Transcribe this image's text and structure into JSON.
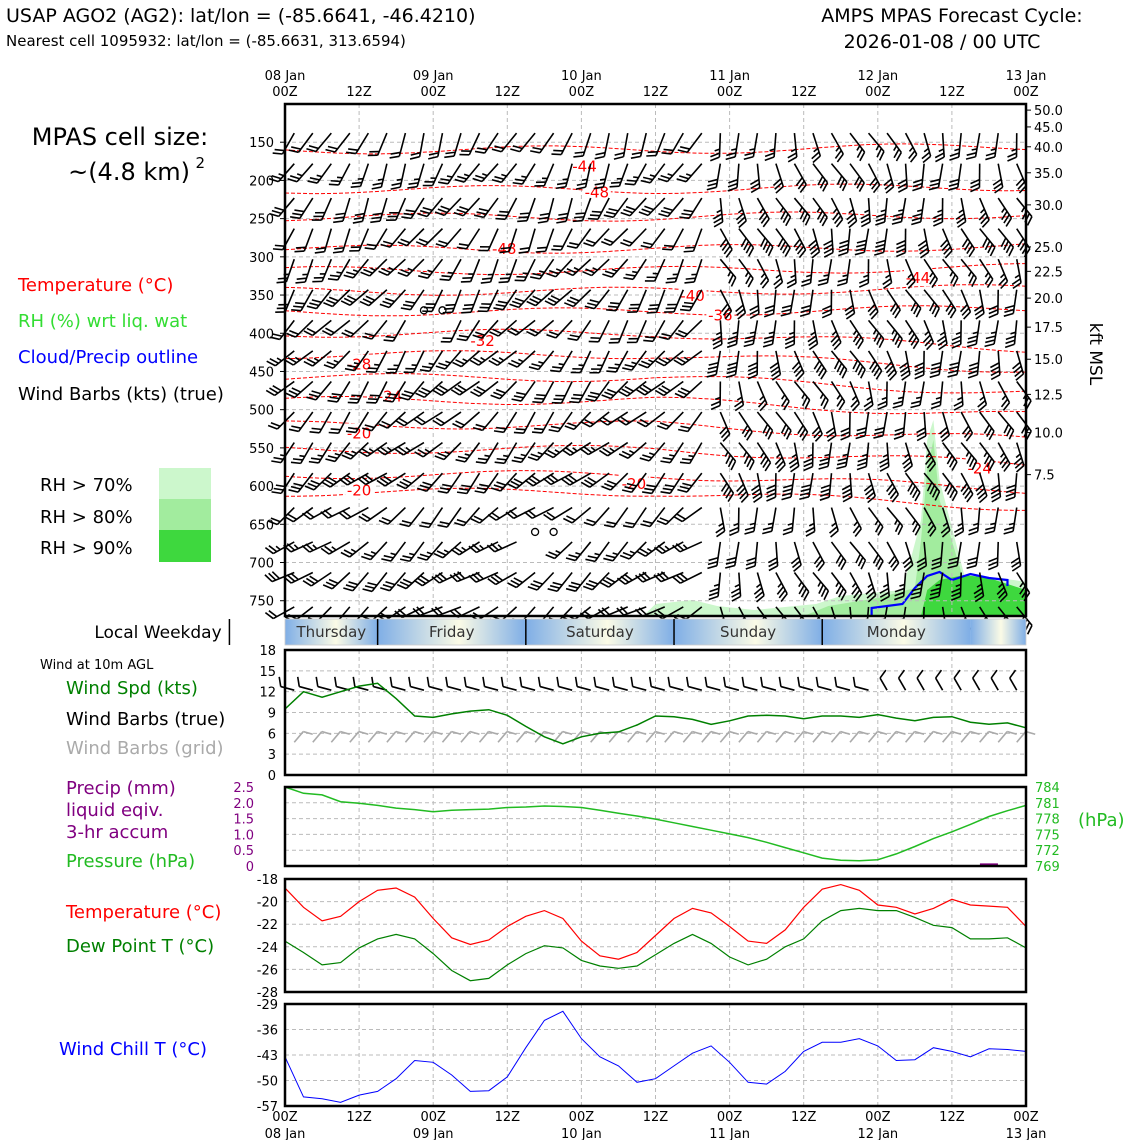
{
  "header": {
    "station": "USAP AGO2 (AG2): lat/lon = (-85.6641, -46.4210)",
    "nearest": "Nearest cell 1095932: lat/lon = (-85.6631, 313.6594)",
    "cycle_label": "AMPS MPAS Forecast Cycle:",
    "cycle_value": "2026-01-08 / 00 UTC"
  },
  "cell_size": {
    "label": "MPAS cell size:",
    "value": "~(4.8 km)",
    "exponent": "2"
  },
  "legend": {
    "temperature": "Temperature (°C)",
    "rh": "RH (%) wrt liq. wat",
    "cloud": "Cloud/Precip outline",
    "barbs": "Wind Barbs (kts) (true)",
    "rh70": "RH > 70%",
    "rh80": "RH > 80%",
    "rh90": "RH > 90%"
  },
  "colors": {
    "temperature": "#ff0000",
    "rh_label": "#33dd33",
    "cloud": "#0000ff",
    "rh70": "#ccf7cc",
    "rh80": "#a2ec9e",
    "rh90": "#3ed83e",
    "wind_speed": "#008000",
    "barb_grid": "#aaaaaa",
    "precip": "#800080",
    "pressure": "#22bb22",
    "dewpoint": "#008000",
    "windchill": "#0000ff",
    "weekday_blue": "#7faee6",
    "weekday_pale": "#fbfbe6"
  },
  "time_axis": {
    "top_date_labels": [
      "08 Jan",
      "09 Jan",
      "10 Jan",
      "11 Jan",
      "12 Jan",
      "13 Jan"
    ],
    "tick_labels": [
      "00Z",
      "12Z",
      "00Z",
      "12Z",
      "00Z",
      "12Z",
      "00Z",
      "12Z",
      "00Z",
      "12Z",
      "00Z"
    ],
    "bottom_date_labels": [
      "08 Jan",
      "09 Jan",
      "10 Jan",
      "11 Jan",
      "12 Jan",
      "13 Jan"
    ]
  },
  "weekday": {
    "label": "Local Weekday",
    "days": [
      "Thursday",
      "Friday",
      "Saturday",
      "Sunday",
      "Monday"
    ]
  },
  "chart_data": [
    {
      "type": "contour",
      "title": "Vertical cross-section (pressure vs time)",
      "ylabel_right": "kft MSL",
      "pressure_ticks": [
        150,
        200,
        250,
        300,
        350,
        400,
        450,
        500,
        550,
        600,
        650,
        700,
        750
      ],
      "height_ticks_kft": [
        "50.0",
        "45.0",
        "40.0",
        "35.0",
        "30.0",
        "25.0",
        "22.5",
        "20.0",
        "17.5",
        "15.0",
        "12.5",
        "10.0",
        "7.5"
      ],
      "height_tick_pressures": [
        108,
        130,
        156,
        190,
        232,
        287,
        319,
        354,
        392,
        434,
        480,
        530,
        585
      ],
      "ylim_hpa": [
        770,
        100
      ],
      "xlim_hours": [
        0,
        120
      ],
      "isotherm_labels": [
        {
          "label": "-44",
          "hour": 48.5,
          "p": 182
        },
        {
          "label": "-48",
          "hour": 50.5,
          "p": 216
        },
        {
          "label": "-48",
          "hour": 35.5,
          "p": 290
        },
        {
          "label": "-40",
          "hour": 66,
          "p": 351
        },
        {
          "label": "-36",
          "hour": 70.5,
          "p": 377
        },
        {
          "label": "-44",
          "hour": 102.5,
          "p": 328
        },
        {
          "label": "-32",
          "hour": 32,
          "p": 410
        },
        {
          "label": "-28",
          "hour": 12,
          "p": 441
        },
        {
          "label": "-24",
          "hour": 17,
          "p": 483
        },
        {
          "label": "-20",
          "hour": 12,
          "p": 531
        },
        {
          "label": "-20",
          "hour": 12,
          "p": 606
        },
        {
          "label": "-20",
          "hour": 56.5,
          "p": 597
        },
        {
          "label": "-24",
          "hour": 112.5,
          "p": 577
        }
      ]
    },
    {
      "type": "line",
      "title": "Wind at 10m AGL",
      "label_speed": "Wind Spd (kts)",
      "label_barbs_true": "Wind Barbs (true)",
      "label_barbs_grid": "Wind Barbs (grid)",
      "ylim": [
        0,
        18
      ],
      "y_ticks": [
        0,
        3,
        6,
        9,
        12,
        15,
        18
      ],
      "x": [
        0,
        3,
        6,
        9,
        12,
        15,
        18,
        21,
        24,
        27,
        30,
        33,
        36,
        39,
        42,
        45,
        48,
        51,
        54,
        57,
        60,
        63,
        66,
        69,
        72,
        75,
        78,
        81,
        84,
        87,
        90,
        93,
        96,
        99,
        102,
        105,
        108,
        111,
        114,
        117,
        120
      ],
      "series": [
        {
          "name": "Wind Spd (kts)",
          "values": [
            9.5,
            12,
            11.2,
            12,
            12.8,
            13.2,
            11,
            8.5,
            8.3,
            8.8,
            9.2,
            9.4,
            8.6,
            7,
            5.5,
            4.5,
            5.5,
            6,
            6.2,
            7.2,
            8.5,
            8.4,
            8,
            7.3,
            7.8,
            8.5,
            8.6,
            8.5,
            8.1,
            8.5,
            8.5,
            8.3,
            8.7,
            8.2,
            7.8,
            8.3,
            8.4,
            7.6,
            7.3,
            7.5,
            6.8
          ]
        }
      ]
    },
    {
      "type": "line",
      "title": "Precip and Pressure",
      "label_precip": "Precip (mm)",
      "label_precip2": "liquid eqiv.",
      "label_precip3": "3-hr accum",
      "label_pressure": "Pressure (hPa)",
      "unit_right": "(hPa)",
      "precip_ylim": [
        0,
        2.5
      ],
      "precip_ticks": [
        "0",
        "0.5",
        "1.0",
        "1.5",
        "2.0",
        "2.5"
      ],
      "pressure_ylim": [
        769,
        784
      ],
      "pressure_ticks": [
        "769",
        "772",
        "775",
        "778",
        "781",
        "784"
      ],
      "x": [
        0,
        3,
        6,
        9,
        12,
        15,
        18,
        21,
        24,
        27,
        30,
        33,
        36,
        39,
        42,
        45,
        48,
        51,
        54,
        57,
        60,
        63,
        66,
        69,
        72,
        75,
        78,
        81,
        84,
        87,
        90,
        93,
        96,
        99,
        102,
        105,
        108,
        111,
        114,
        117,
        120
      ],
      "series": [
        {
          "name": "Pressure (hPa)",
          "values": [
            784,
            782.8,
            782.5,
            781.2,
            780.9,
            780.5,
            780,
            779.7,
            779.3,
            779.6,
            779.7,
            779.8,
            780.1,
            780.2,
            780.4,
            780.3,
            780.1,
            779.6,
            779,
            778.5,
            777.9,
            777.2,
            776.5,
            775.8,
            775.1,
            774.4,
            773.5,
            772.5,
            771.5,
            770.5,
            770.1,
            770,
            770.2,
            771.3,
            772.7,
            774.2,
            775.5,
            776.9,
            778.4,
            779.5,
            780.5
          ]
        },
        {
          "name": "Precip (mm)",
          "values": [
            0,
            0,
            0,
            0,
            0,
            0,
            0,
            0,
            0,
            0,
            0,
            0,
            0,
            0,
            0,
            0,
            0,
            0,
            0,
            0,
            0,
            0,
            0,
            0,
            0,
            0,
            0,
            0,
            0,
            0,
            0,
            0,
            0,
            0,
            0,
            0,
            0,
            0,
            0.02,
            0,
            0
          ]
        }
      ]
    },
    {
      "type": "line",
      "title": "Temperature and Dew Point",
      "label_temp": "Temperature (°C)",
      "label_dew": "Dew Point T (°C)",
      "ylim": [
        -28,
        -18
      ],
      "y_ticks": [
        "-18",
        "-20",
        "-22",
        "-24",
        "-26",
        "-28"
      ],
      "x": [
        0,
        3,
        6,
        9,
        12,
        15,
        18,
        21,
        24,
        27,
        30,
        33,
        36,
        39,
        42,
        45,
        48,
        51,
        54,
        57,
        60,
        63,
        66,
        69,
        72,
        75,
        78,
        81,
        84,
        87,
        90,
        93,
        96,
        99,
        102,
        105,
        108,
        111,
        114,
        117,
        120
      ],
      "series": [
        {
          "name": "Temperature (°C)",
          "values": [
            -18.8,
            -20.5,
            -21.7,
            -21.3,
            -20,
            -19,
            -18.8,
            -19.6,
            -21.5,
            -23.2,
            -23.8,
            -23.4,
            -22.2,
            -21.3,
            -20.8,
            -21.5,
            -23.5,
            -24.8,
            -25.1,
            -24.5,
            -23,
            -21.5,
            -20.6,
            -21,
            -22.2,
            -23.5,
            -23.7,
            -22.5,
            -20.5,
            -18.9,
            -18.5,
            -19,
            -20.3,
            -20.5,
            -21.1,
            -20.6,
            -19.8,
            -20.3,
            -20.4,
            -20.5,
            -22.2
          ]
        },
        {
          "name": "Dew Point T (°C)",
          "values": [
            -23.5,
            -24.5,
            -25.6,
            -25.4,
            -24.1,
            -23.3,
            -22.9,
            -23.3,
            -24.6,
            -26.1,
            -27,
            -26.8,
            -25.6,
            -24.6,
            -23.9,
            -24.1,
            -25.2,
            -25.7,
            -25.9,
            -25.7,
            -24.7,
            -23.7,
            -22.9,
            -23.7,
            -24.9,
            -25.6,
            -25.1,
            -24,
            -23.3,
            -21.7,
            -20.8,
            -20.6,
            -20.8,
            -20.8,
            -21.4,
            -22.1,
            -22.3,
            -23.3,
            -23.3,
            -23.2,
            -24.1
          ]
        }
      ]
    },
    {
      "type": "line",
      "title": "Wind Chill",
      "label": "Wind Chill T (°C)",
      "ylim": [
        -57,
        -29
      ],
      "y_ticks": [
        "-29",
        "-36",
        "-43",
        "-50",
        "-57"
      ],
      "x": [
        0,
        3,
        6,
        9,
        12,
        15,
        18,
        21,
        24,
        27,
        30,
        33,
        36,
        39,
        42,
        45,
        48,
        51,
        54,
        57,
        60,
        63,
        66,
        69,
        72,
        75,
        78,
        81,
        84,
        87,
        90,
        93,
        96,
        99,
        102,
        105,
        108,
        111,
        114,
        117,
        120
      ],
      "series": [
        {
          "name": "Wind Chill T (°C)",
          "values": [
            -43.5,
            -54.5,
            -55,
            -56,
            -54,
            -53,
            -49.5,
            -44.5,
            -45,
            -48.5,
            -53,
            -52.8,
            -49,
            -41,
            -33.5,
            -31,
            -38.5,
            -43.5,
            -46,
            -50.5,
            -49.5,
            -46,
            -42.5,
            -40.5,
            -45,
            -50.5,
            -51,
            -47.5,
            -42,
            -39.5,
            -39.5,
            -38.5,
            -40.5,
            -44.5,
            -44.3,
            -41,
            -42,
            -43.5,
            -41.3,
            -41.5,
            -42
          ]
        }
      ]
    }
  ]
}
